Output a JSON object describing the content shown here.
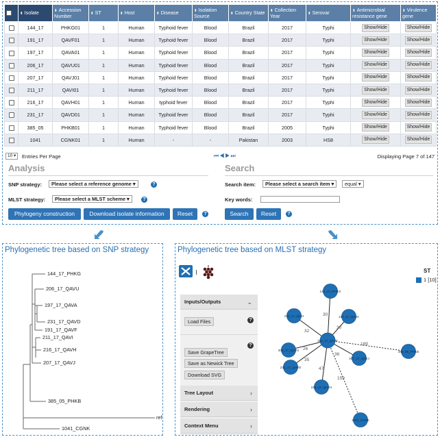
{
  "table": {
    "headers": [
      {
        "label": "Isolate"
      },
      {
        "label": "Accession Number"
      },
      {
        "label": "ST"
      },
      {
        "label": "Host"
      },
      {
        "label": "Disease"
      },
      {
        "label": "Isolation Source"
      },
      {
        "label": "Country State"
      },
      {
        "label": "Collection Year"
      },
      {
        "label": "Serovar"
      },
      {
        "label": "Antimicrobial resistance gene"
      },
      {
        "label": "Virulence gene"
      }
    ],
    "show_hide_label": "Show/Hide",
    "rows": [
      {
        "isolate": "144_17",
        "accession": "PHKG01",
        "st": "1",
        "host": "Human",
        "disease": "Typhoid fever",
        "source": "Blood",
        "country": "Brazil",
        "year": "2017",
        "serovar": "Typhi"
      },
      {
        "isolate": "191_17",
        "accession": "QAVF01",
        "st": "1",
        "host": "Human",
        "disease": "Typhoid fever",
        "source": "Blood",
        "country": "Brazil",
        "year": "2017",
        "serovar": "Typhi"
      },
      {
        "isolate": "197_17",
        "accession": "QAVA01",
        "st": "1",
        "host": "Human",
        "disease": "Typhoid fever",
        "source": "Blood",
        "country": "Brazil",
        "year": "2017",
        "serovar": "Typhi"
      },
      {
        "isolate": "206_17",
        "accession": "QAVU01",
        "st": "1",
        "host": "Human",
        "disease": "Typhoid fever",
        "source": "Blood",
        "country": "Brazil",
        "year": "2017",
        "serovar": "Typhi"
      },
      {
        "isolate": "207_17",
        "accession": "QAVJ01",
        "st": "1",
        "host": "Human",
        "disease": "Typhoid fever",
        "source": "Blood",
        "country": "Brazil",
        "year": "2017",
        "serovar": "Typhi"
      },
      {
        "isolate": "211_17",
        "accession": "QAVI01",
        "st": "1",
        "host": "Human",
        "disease": "Typhoid fever",
        "source": "Blood",
        "country": "Brazil",
        "year": "2017",
        "serovar": "Typhi"
      },
      {
        "isolate": "216_17",
        "accession": "QAVH01",
        "st": "1",
        "host": "Human",
        "disease": "typhoid fever",
        "source": "Blood",
        "country": "Brazil",
        "year": "2017",
        "serovar": "Typhi"
      },
      {
        "isolate": "231_17",
        "accession": "QAVD01",
        "st": "1",
        "host": "Human",
        "disease": "Typhoid fever",
        "source": "Blood",
        "country": "Brazil",
        "year": "2017",
        "serovar": "Typhi"
      },
      {
        "isolate": "385_05",
        "accession": "PHKB01",
        "st": "1",
        "host": "Human",
        "disease": "Typhoid fever",
        "source": "Blood",
        "country": "Brazil",
        "year": "2005",
        "serovar": "Typhi"
      },
      {
        "isolate": "1041",
        "accession": "CGNK01",
        "st": "1",
        "host": "Human",
        "disease": "-",
        "source": "-",
        "country": "Pakistan",
        "year": "2003",
        "serovar": "HS8"
      }
    ]
  },
  "pager": {
    "per_page_value": "10",
    "per_page_label": "Entries Per Page",
    "arrows": "⏮◀▶⏭",
    "status": "Displaying Page 7 of 147"
  },
  "analysis": {
    "title": "Analysis",
    "snp_label": "SNP strategy:",
    "snp_select": "Please select a reference genome",
    "mlst_label": "MLST strategy:",
    "mlst_select": "Please select a MLST scheme",
    "btn_phylogeny": "Phylogeny construction",
    "btn_download": "Download isolate information",
    "btn_reset": "Reset"
  },
  "search": {
    "title": "Search",
    "item_label": "Search item:",
    "item_select": "Please select a search item",
    "op_select": "equal",
    "keywords_label": "Key words:",
    "keywords_value": "",
    "btn_search": "Search",
    "btn_reset": "Reset"
  },
  "help_icon_text": "?",
  "snp_tree": {
    "title": "Phylogenetic tree based on SNP strategy",
    "leaves": [
      "144_17_PHKG",
      "206_17_QAVU",
      "197_17_QAVA",
      "231_17_QAVD",
      "191_17_QAVF",
      "211_17_QAVI",
      "216_17_QAVH",
      "207_17_QAVJ",
      "385_05_PHKB",
      "ref",
      "1041_CGNK"
    ]
  },
  "mlst_tree": {
    "title": "Phylogenetic tree based on MLST strategy",
    "legend_title": "ST",
    "legend_label": "1 [10]",
    "node_color": "#1f6fb4",
    "menu": {
      "inputs_outputs": "Inputs/Outputs",
      "load_files": "Load Files",
      "save_grapetree": "Save GrapeTree",
      "save_newick": "Save as Newick Tree",
      "download_svg": "Download SVG",
      "tree_layout": "Tree Layout",
      "rendering": "Rendering",
      "context_menu": "Context Menu",
      "help_text": "?"
    },
    "nodes": {
      "center": "191_17_QAVF",
      "n144": "144_17_PHKG",
      "n211": "211_17_QAVI",
      "n197": "197_17_QAVA",
      "n206": "206_17_QAVU",
      "n207": "207_17_QAVJ",
      "n231": "231_17_QAVD",
      "n216": "216_17_QAVH",
      "n385": "385_05_PHKB",
      "n1041": "1041_CGNK"
    },
    "edges": {
      "e144": "30",
      "e211": "32",
      "e197": "30",
      "e206": "26",
      "e207": "36",
      "e231": "35",
      "e216": "47",
      "e385": "189",
      "e1041": "159"
    }
  },
  "colors": {
    "accent": "#2e74b6",
    "header_bg": "#5b7fa6",
    "title_blue": "#2a6fb0",
    "panel_border": "#4a90c8"
  }
}
